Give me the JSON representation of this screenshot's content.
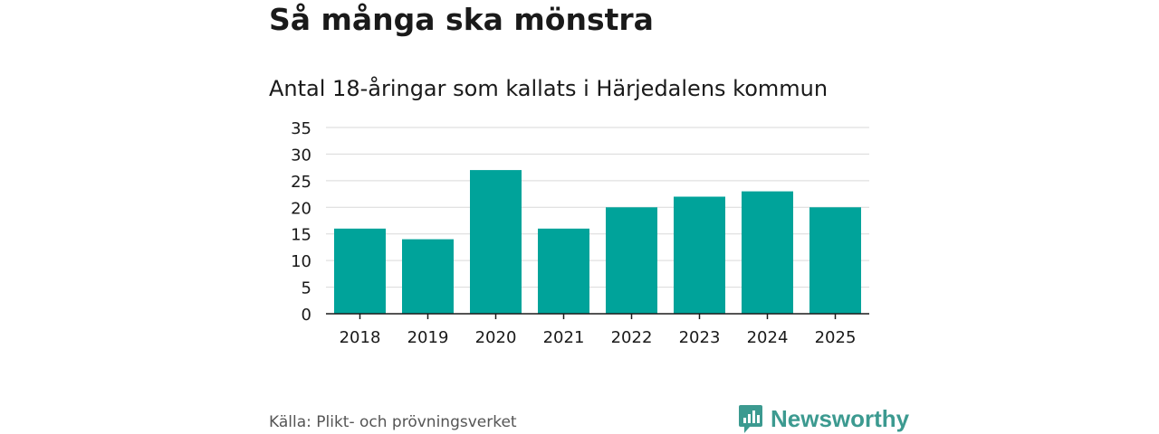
{
  "header": {
    "title": "Så många ska mönstra",
    "subtitle": "Antal 18-åringar som kallats i Härjedalens kommun"
  },
  "chart_data": {
    "type": "bar",
    "title": "Antal 18-åringar som kallats i Härjedalens kommun",
    "xlabel": "",
    "ylabel": "",
    "categories": [
      "2018",
      "2019",
      "2020",
      "2021",
      "2022",
      "2023",
      "2024",
      "2025"
    ],
    "values": [
      16,
      14,
      27,
      16,
      20,
      22,
      23,
      20
    ],
    "ylim": [
      0,
      35
    ],
    "yticks": [
      "0",
      "5",
      "10",
      "15",
      "20",
      "25",
      "30",
      "35"
    ],
    "grid": true,
    "bar_color": "#00a39a"
  },
  "footer": {
    "source": "Källa: Plikt- och prövningsverket",
    "brand_name": "Newsworthy",
    "brand_icon": "newsworthy-logo-icon",
    "brand_color": "#3c9a90"
  }
}
